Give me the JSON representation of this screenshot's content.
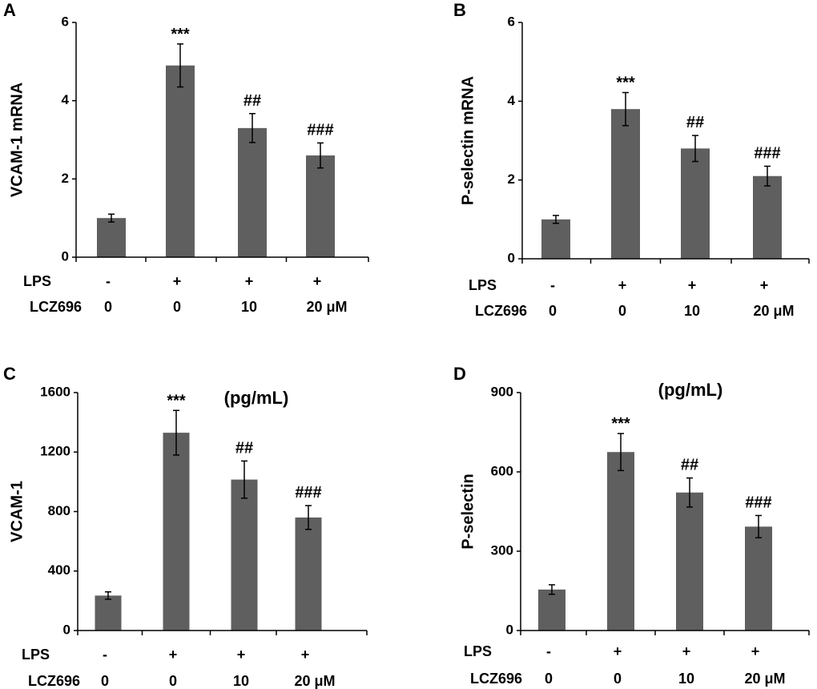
{
  "bar_color": "#5f5f5f",
  "axis_color": "#000000",
  "chart_data": [
    {
      "type": "bar",
      "panel": "A",
      "ylabel": "VCAM-1 mRNA",
      "unit_note": "",
      "ylim": [
        0,
        6
      ],
      "yticks": [
        "0",
        "2",
        "4",
        "6"
      ],
      "categories": [
        "LPS - / LCZ696 0",
        "LPS + / LCZ696 0",
        "LPS + / LCZ696 10",
        "LPS + / LCZ696 20 μM"
      ],
      "values": [
        1.0,
        4.9,
        3.3,
        2.6
      ],
      "errors": [
        0.1,
        0.55,
        0.37,
        0.32
      ],
      "significance": [
        "",
        "***",
        "##",
        "###"
      ],
      "lps": [
        "-",
        "+",
        "+",
        "+"
      ],
      "lcz696": [
        "0",
        "0",
        "10",
        "20 μM"
      ],
      "row_labels": {
        "lps": "LPS",
        "lcz": "LCZ696"
      }
    },
    {
      "type": "bar",
      "panel": "B",
      "ylabel": "P-selectin mRNA",
      "unit_note": "",
      "ylim": [
        0,
        6
      ],
      "yticks": [
        "0",
        "2",
        "4",
        "6"
      ],
      "categories": [
        "LPS - / LCZ696 0",
        "LPS + / LCZ696 0",
        "LPS + / LCZ696 10",
        "LPS + / LCZ696 20 μM"
      ],
      "values": [
        1.0,
        3.8,
        2.8,
        2.1
      ],
      "errors": [
        0.1,
        0.42,
        0.33,
        0.25
      ],
      "significance": [
        "",
        "***",
        "##",
        "###"
      ],
      "lps": [
        "-",
        "+",
        "+",
        "+"
      ],
      "lcz696": [
        "0",
        "0",
        "10",
        "20 μM"
      ],
      "row_labels": {
        "lps": "LPS",
        "lcz": "LCZ696"
      }
    },
    {
      "type": "bar",
      "panel": "C",
      "ylabel": "VCAM-1",
      "unit_note": "(pg/mL)",
      "ylim": [
        0,
        1600
      ],
      "yticks": [
        "0",
        "400",
        "800",
        "1200",
        "1600"
      ],
      "categories": [
        "LPS - / LCZ696 0",
        "LPS + / LCZ696 0",
        "LPS + / LCZ696 10",
        "LPS + / LCZ696 20 μM"
      ],
      "values": [
        235,
        1330,
        1015,
        760
      ],
      "errors": [
        25,
        150,
        125,
        80
      ],
      "significance": [
        "",
        "***",
        "##",
        "###"
      ],
      "lps": [
        "-",
        "+",
        "+",
        "+"
      ],
      "lcz696": [
        "0",
        "0",
        "10",
        "20 μM"
      ],
      "row_labels": {
        "lps": "LPS",
        "lcz": "LCZ696"
      }
    },
    {
      "type": "bar",
      "panel": "D",
      "ylabel": "P-selectin",
      "unit_note": "(pg/mL)",
      "ylim": [
        0,
        900
      ],
      "yticks": [
        "0",
        "300",
        "600",
        "900"
      ],
      "categories": [
        "LPS - / LCZ696 0",
        "LPS + / LCZ696 0",
        "LPS + / LCZ696 10",
        "LPS + / LCZ696 20 μM"
      ],
      "values": [
        155,
        675,
        522,
        393
      ],
      "errors": [
        18,
        70,
        55,
        42
      ],
      "significance": [
        "",
        "***",
        "##",
        "###"
      ],
      "lps": [
        "-",
        "+",
        "+",
        "+"
      ],
      "lcz696": [
        "0",
        "0",
        "10",
        "20 μM"
      ],
      "row_labels": {
        "lps": "LPS",
        "lcz": "LCZ696"
      }
    }
  ]
}
